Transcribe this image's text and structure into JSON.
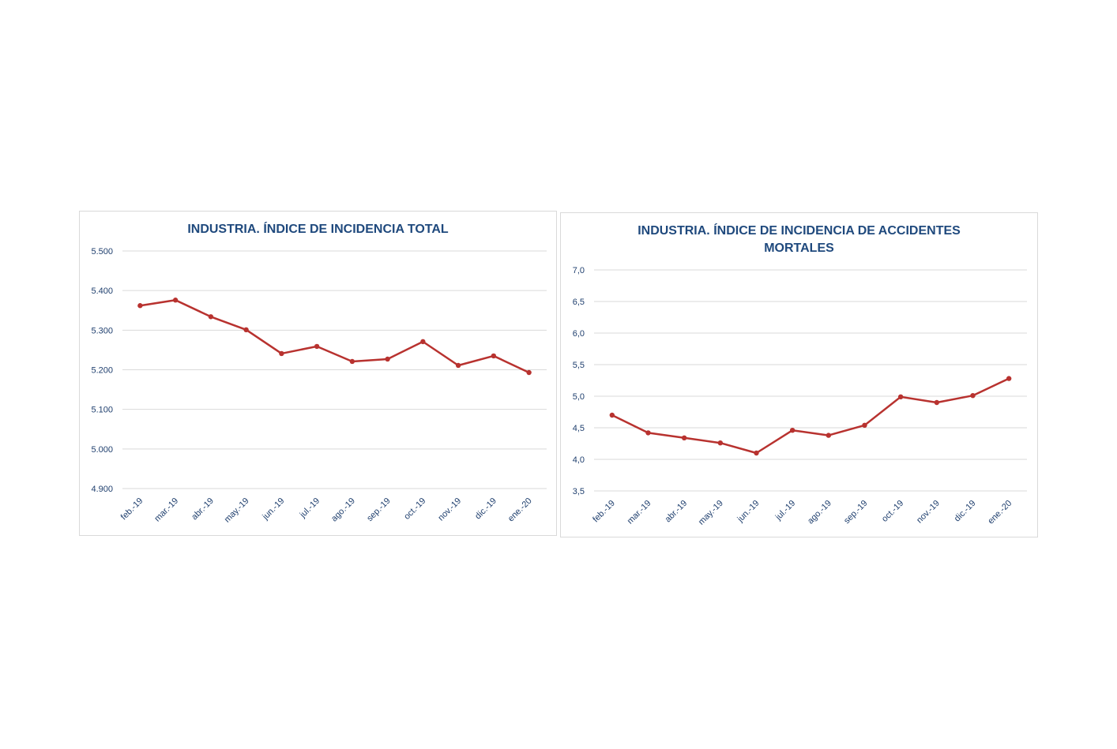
{
  "colors": {
    "line": "#b8322f",
    "title": "#1f497d",
    "axis_text": "#1f3f6e",
    "grid": "#d9d9d9"
  },
  "chart_data": [
    {
      "type": "line",
      "title": "INDUSTRIA. ÍNDICE DE INCIDENCIA TOTAL",
      "categories": [
        "feb.-19",
        "mar.-19",
        "abr.-19",
        "may.-19",
        "jun.-19",
        "jul.-19",
        "ago.-19",
        "sep.-19",
        "oct.-19",
        "nov.-19",
        "dic.-19",
        "ene.-20"
      ],
      "values": [
        5362,
        5376,
        5334,
        5301,
        5241,
        5259,
        5221,
        5227,
        5271,
        5211,
        5235,
        5193
      ],
      "ylim": [
        4900,
        5500
      ],
      "yticks": [
        "4.900",
        "5.000",
        "5.100",
        "5.200",
        "5.300",
        "5.400",
        "5.500"
      ],
      "grid": true,
      "legend": "none"
    },
    {
      "type": "line",
      "title": "INDUSTRIA. ÍNDICE DE INCIDENCIA DE ACCIDENTES\nMORTALES",
      "categories": [
        "feb.-19",
        "mar.-19",
        "abr.-19",
        "may.-19",
        "jun.-19",
        "jul.-19",
        "ago.-19",
        "sep.-19",
        "oct.-19",
        "nov.-19",
        "dic.-19",
        "ene.-20"
      ],
      "values": [
        4.7,
        4.42,
        4.34,
        4.26,
        4.1,
        4.46,
        4.38,
        4.54,
        4.99,
        4.9,
        5.01,
        5.28
      ],
      "ylim": [
        3.5,
        7.0
      ],
      "yticks": [
        "3,5",
        "4,0",
        "4,5",
        "5,0",
        "5,5",
        "6,0",
        "6,5",
        "7,0"
      ],
      "grid": true,
      "legend": "none"
    }
  ]
}
